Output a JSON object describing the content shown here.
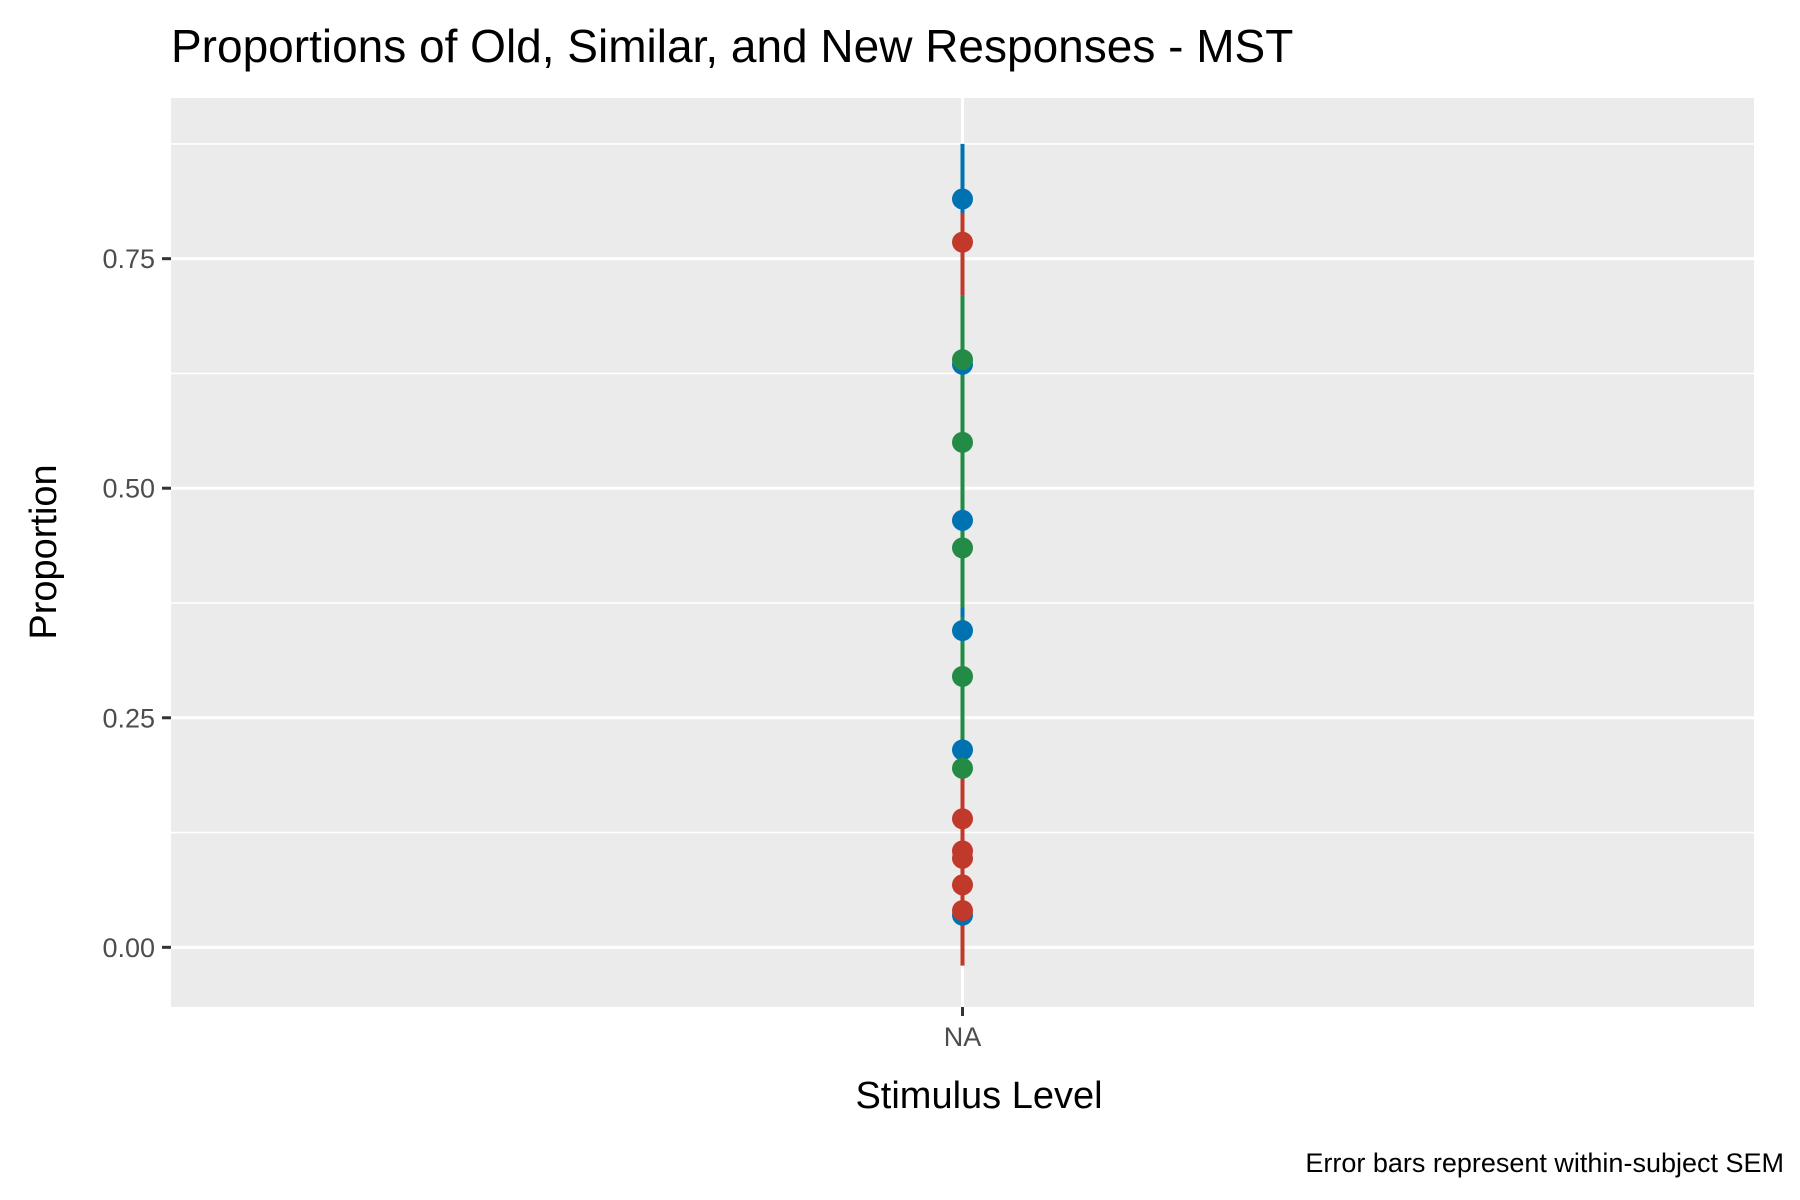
{
  "chart_data": {
    "type": "scatter",
    "title": "Proportions of Old, Similar, and New Responses - MST",
    "xlabel": "Stimulus Level",
    "ylabel": "Proportion",
    "caption": "Error bars represent within-subject SEM",
    "categories": [
      "NA"
    ],
    "y_ticks": [
      0.0,
      0.25,
      0.5,
      0.75
    ],
    "y_tick_labels": [
      "0.00",
      "0.25",
      "0.50",
      "0.75"
    ],
    "ylim": [
      -0.065,
      0.925
    ],
    "grid": true,
    "legend": "none",
    "panel_background": "#EBEBEB",
    "series": [
      {
        "color": "#0072B2",
        "points": [
          {
            "x": "NA",
            "y": 0.815,
            "ymin": 0.75,
            "ymax": 0.875
          },
          {
            "x": "NA",
            "y": 0.635,
            "ymin": 0.56,
            "ymax": 0.71
          },
          {
            "x": "NA",
            "y": 0.465,
            "ymin": 0.4,
            "ymax": 0.53
          },
          {
            "x": "NA",
            "y": 0.345,
            "ymin": 0.29,
            "ymax": 0.4
          },
          {
            "x": "NA",
            "y": 0.215,
            "ymin": 0.16,
            "ymax": 0.27
          },
          {
            "x": "NA",
            "y": 0.035,
            "ymin": 0.0,
            "ymax": 0.07
          }
        ]
      },
      {
        "color": "#238B45",
        "points": [
          {
            "x": "NA",
            "y": 0.64,
            "ymin": 0.57,
            "ymax": 0.71
          },
          {
            "x": "NA",
            "y": 0.55,
            "ymin": 0.48,
            "ymax": 0.62
          },
          {
            "x": "NA",
            "y": 0.435,
            "ymin": 0.37,
            "ymax": 0.5
          },
          {
            "x": "NA",
            "y": 0.295,
            "ymin": 0.23,
            "ymax": 0.36
          },
          {
            "x": "NA",
            "y": 0.195,
            "ymin": 0.14,
            "ymax": 0.25
          }
        ]
      },
      {
        "color": "#C0392B",
        "points": [
          {
            "x": "NA",
            "y": 0.768,
            "ymin": 0.71,
            "ymax": 0.8
          },
          {
            "x": "NA",
            "y": 0.14,
            "ymin": 0.09,
            "ymax": 0.19
          },
          {
            "x": "NA",
            "y": 0.105,
            "ymin": 0.06,
            "ymax": 0.15
          },
          {
            "x": "NA",
            "y": 0.097,
            "ymin": 0.05,
            "ymax": 0.14
          },
          {
            "x": "NA",
            "y": 0.068,
            "ymin": 0.02,
            "ymax": 0.11
          },
          {
            "x": "NA",
            "y": 0.04,
            "ymin": -0.02,
            "ymax": 0.09
          }
        ]
      }
    ]
  }
}
